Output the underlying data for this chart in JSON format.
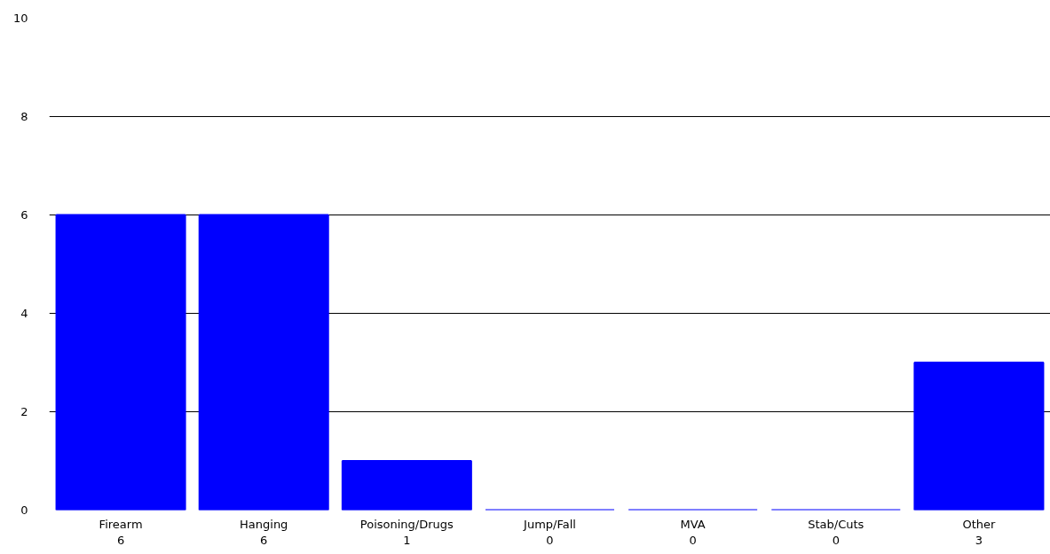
{
  "chart_data": {
    "type": "bar",
    "categories": [
      "Firearm",
      "Hanging",
      "Poisoning/Drugs",
      "Jump/Fall",
      "MVA",
      "Stab/Cuts",
      "Other"
    ],
    "values": [
      6,
      6,
      1,
      0,
      0,
      0,
      3
    ],
    "color": "#0000ff",
    "ylim": [
      0,
      10
    ],
    "yticks": [
      0,
      2,
      4,
      6,
      8,
      10
    ],
    "grid": "y",
    "data_labels": true
  }
}
